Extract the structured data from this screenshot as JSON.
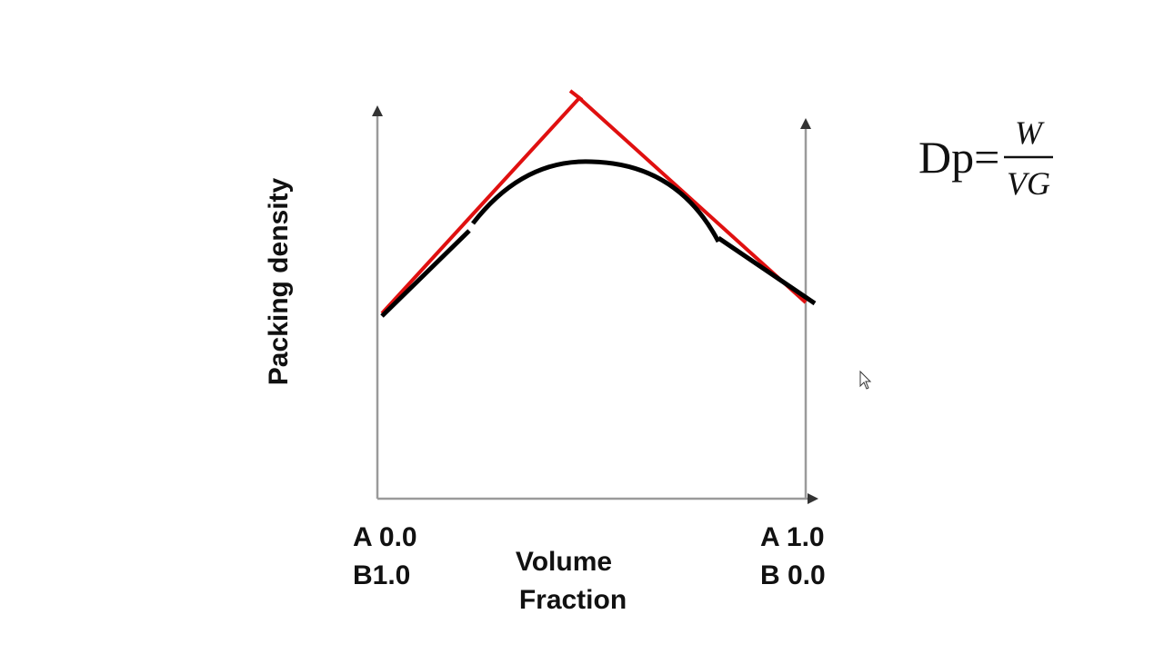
{
  "axis_labels": {
    "y": "Packing density",
    "x": [
      "Volume",
      "Fraction"
    ]
  },
  "left_end": [
    "A 0.0",
    "B1.0"
  ],
  "right_end": [
    "A 1.0",
    "B 0.0"
  ],
  "formula": {
    "lhs": "Dp=",
    "numerator": "W",
    "denominator": "VG"
  }
}
